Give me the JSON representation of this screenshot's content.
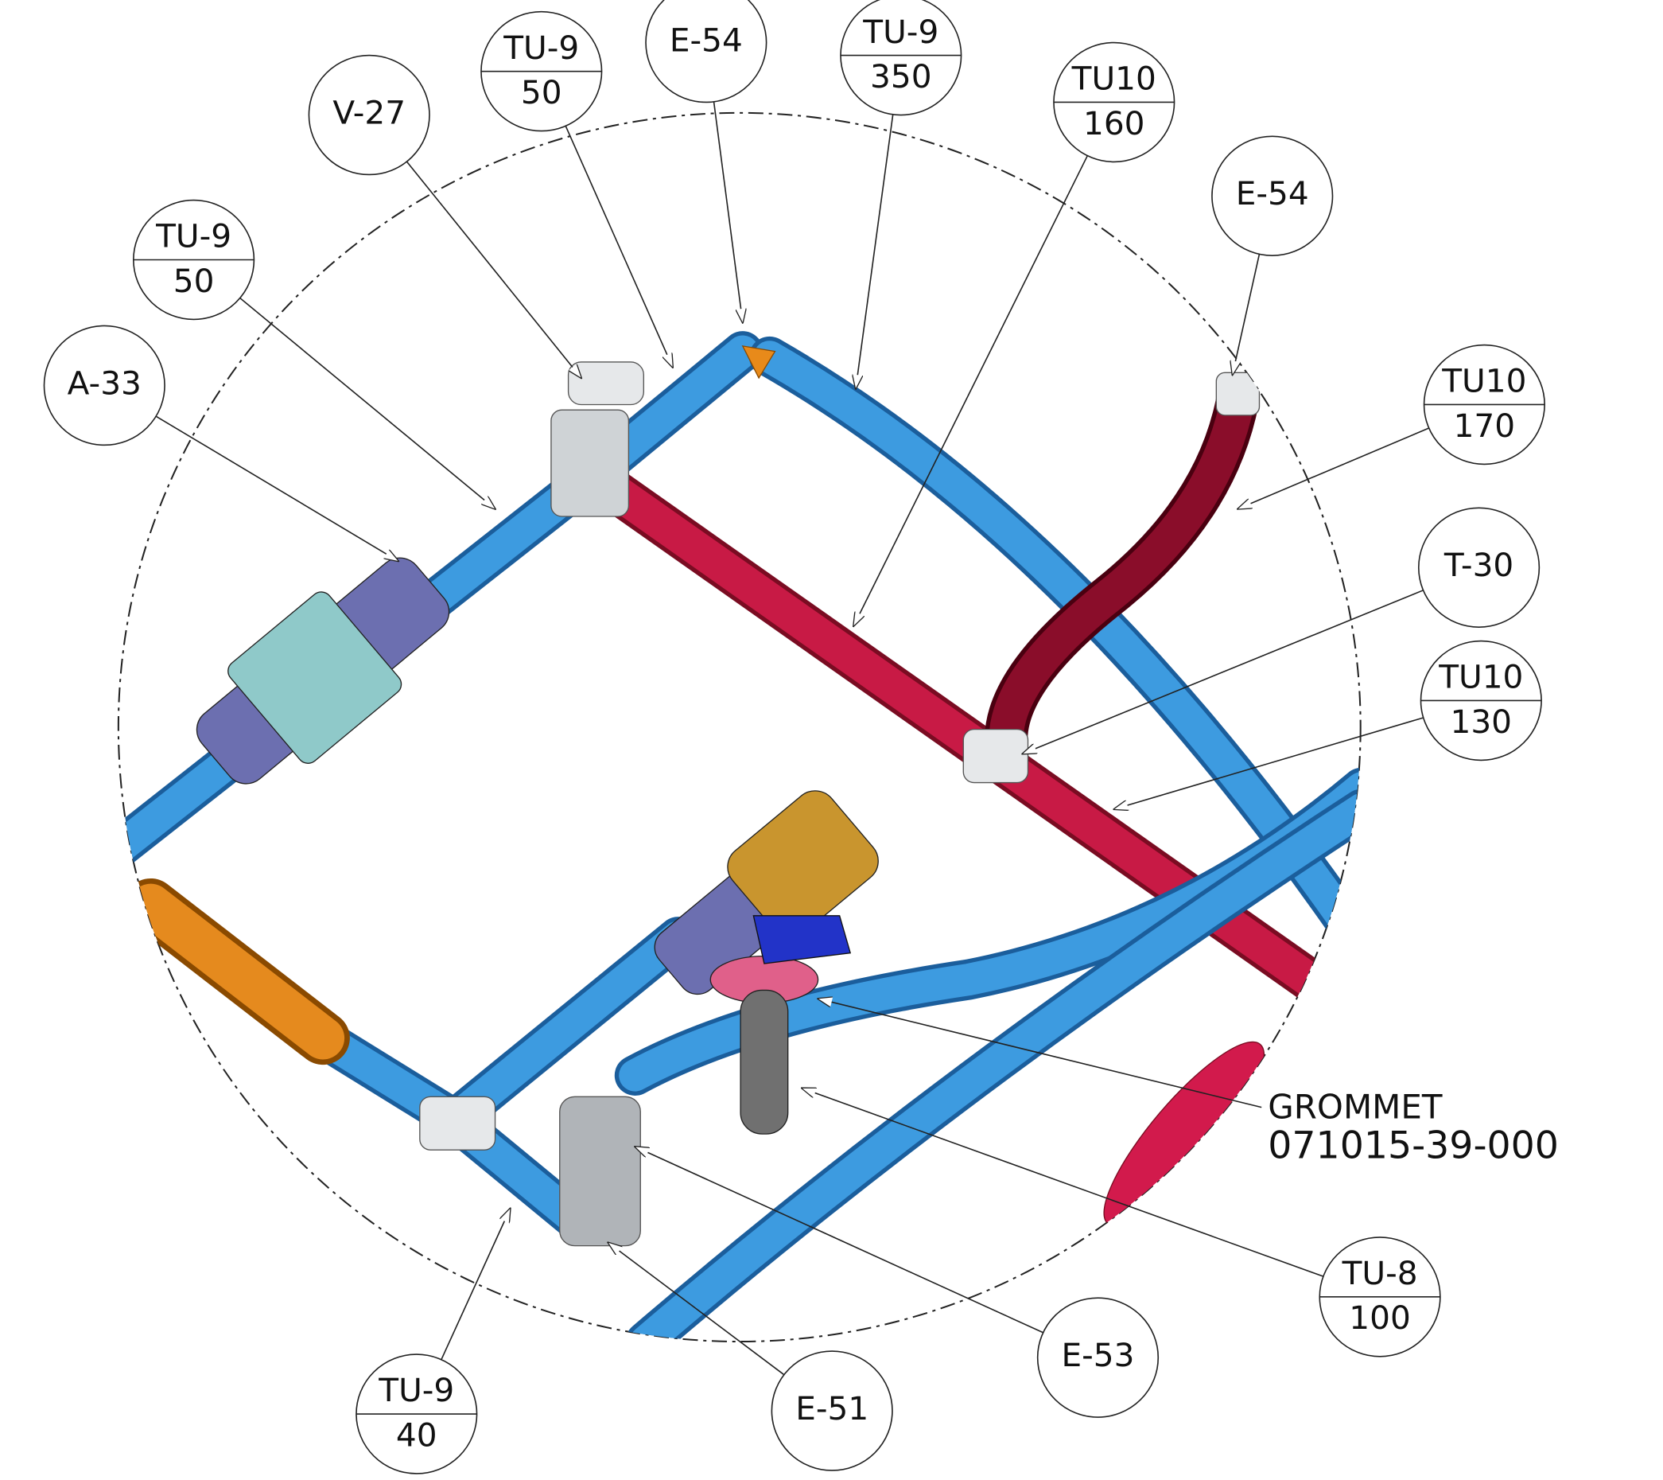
{
  "balloons": [
    {
      "top": "A-33"
    },
    {
      "top": "TU-9",
      "bottom": "50"
    },
    {
      "top": "V-27"
    },
    {
      "top": "TU-9",
      "bottom": "50"
    },
    {
      "top": "E-54"
    },
    {
      "top": "TU-9",
      "bottom": "350"
    },
    {
      "top": "TU10",
      "bottom": "160"
    },
    {
      "top": "E-54"
    },
    {
      "top": "TU10",
      "bottom": "170"
    },
    {
      "top": "T-30"
    },
    {
      "top": "TU10",
      "bottom": "130"
    },
    {
      "top": "TU-8",
      "bottom": "100"
    },
    {
      "top": "E-53"
    },
    {
      "top": "E-51"
    },
    {
      "top": "TU-9",
      "bottom": "40"
    }
  ],
  "note": {
    "name": "GROMMET",
    "part_number": "071015-39-000"
  }
}
